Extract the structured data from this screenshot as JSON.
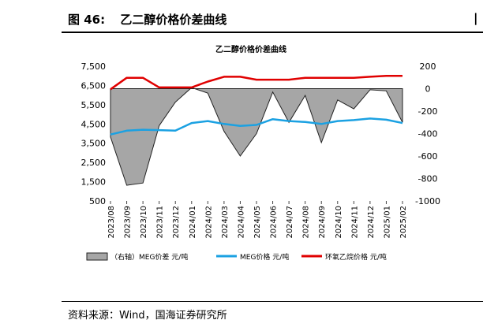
{
  "figure": {
    "label": "图 46:",
    "title": "乙二醇价格价差曲线"
  },
  "source_text": "资料来源：Wind，国海证券研究所",
  "colors": {
    "spread_fill": "#a6a6a6",
    "meg_price": "#1ba1e2",
    "eo_price": "#e00000"
  },
  "chart_data": {
    "type": "line",
    "title": "乙二醇价格价差曲线",
    "x_labels": [
      "2023/08",
      "2023/09",
      "2023/10",
      "2023/11",
      "2023/12",
      "2024/01",
      "2024/02",
      "2024/03",
      "2024/04",
      "2024/05",
      "2024/06",
      "2024/07",
      "2024/08",
      "2024/09",
      "2024/10",
      "2024/11",
      "2024/12",
      "2025/01",
      "2025/02"
    ],
    "ylim_left": [
      500,
      7500
    ],
    "yticks_left": [
      "7,500",
      "6,500",
      "5,500",
      "4,500",
      "3,500",
      "2,500",
      "1,500",
      "500"
    ],
    "ylim_right": [
      -1000,
      200
    ],
    "yticks_right": [
      "200",
      "0",
      "-200",
      "-400",
      "-600",
      "-800",
      "-1000"
    ],
    "series": [
      {
        "name": "（右轴）MEG价差  元/吨",
        "kind": "area",
        "axis": "right",
        "x": [
          "2023/08",
          "2023/09",
          "2023/10",
          "2023/11",
          "2023/12",
          "2024/01",
          "2024/02",
          "2024/03",
          "2024/04",
          "2024/05",
          "2024/06",
          "2024/07",
          "2024/08",
          "2024/09",
          "2024/10",
          "2024/11",
          "2024/12",
          "2025/01",
          "2025/02"
        ],
        "values": [
          -430,
          -860,
          -840,
          -330,
          -120,
          10,
          -40,
          -380,
          -600,
          -400,
          -30,
          -300,
          -60,
          -480,
          -100,
          -180,
          -10,
          -20,
          -300
        ]
      },
      {
        "name": "MEG价格  元/吨",
        "kind": "line",
        "axis": "left",
        "x": [
          "2023/08",
          "2023/09",
          "2023/10",
          "2023/11",
          "2023/12",
          "2024/01",
          "2024/02",
          "2024/03",
          "2024/04",
          "2024/05",
          "2024/06",
          "2024/07",
          "2024/08",
          "2024/09",
          "2024/10",
          "2024/11",
          "2024/12",
          "2025/01",
          "2025/02"
        ],
        "values": [
          3950,
          4150,
          4200,
          4180,
          4150,
          4550,
          4650,
          4500,
          4400,
          4450,
          4750,
          4650,
          4600,
          4500,
          4650,
          4700,
          4780,
          4720,
          4550
        ]
      },
      {
        "name": "环氧乙烷价格  元/吨",
        "kind": "line",
        "axis": "left",
        "x": [
          "2023/08",
          "2023/09",
          "2023/10",
          "2023/11",
          "2023/12",
          "2024/01",
          "2024/02",
          "2024/03",
          "2024/04",
          "2024/05",
          "2024/06",
          "2024/07",
          "2024/08",
          "2024/09",
          "2024/10",
          "2024/11",
          "2024/12",
          "2025/01",
          "2025/02"
        ],
        "values": [
          6300,
          6900,
          6900,
          6400,
          6400,
          6400,
          6700,
          6950,
          6950,
          6800,
          6800,
          6800,
          6900,
          6900,
          6900,
          6900,
          6950,
          7000,
          7000
        ]
      }
    ],
    "legend_position": "bottom"
  }
}
